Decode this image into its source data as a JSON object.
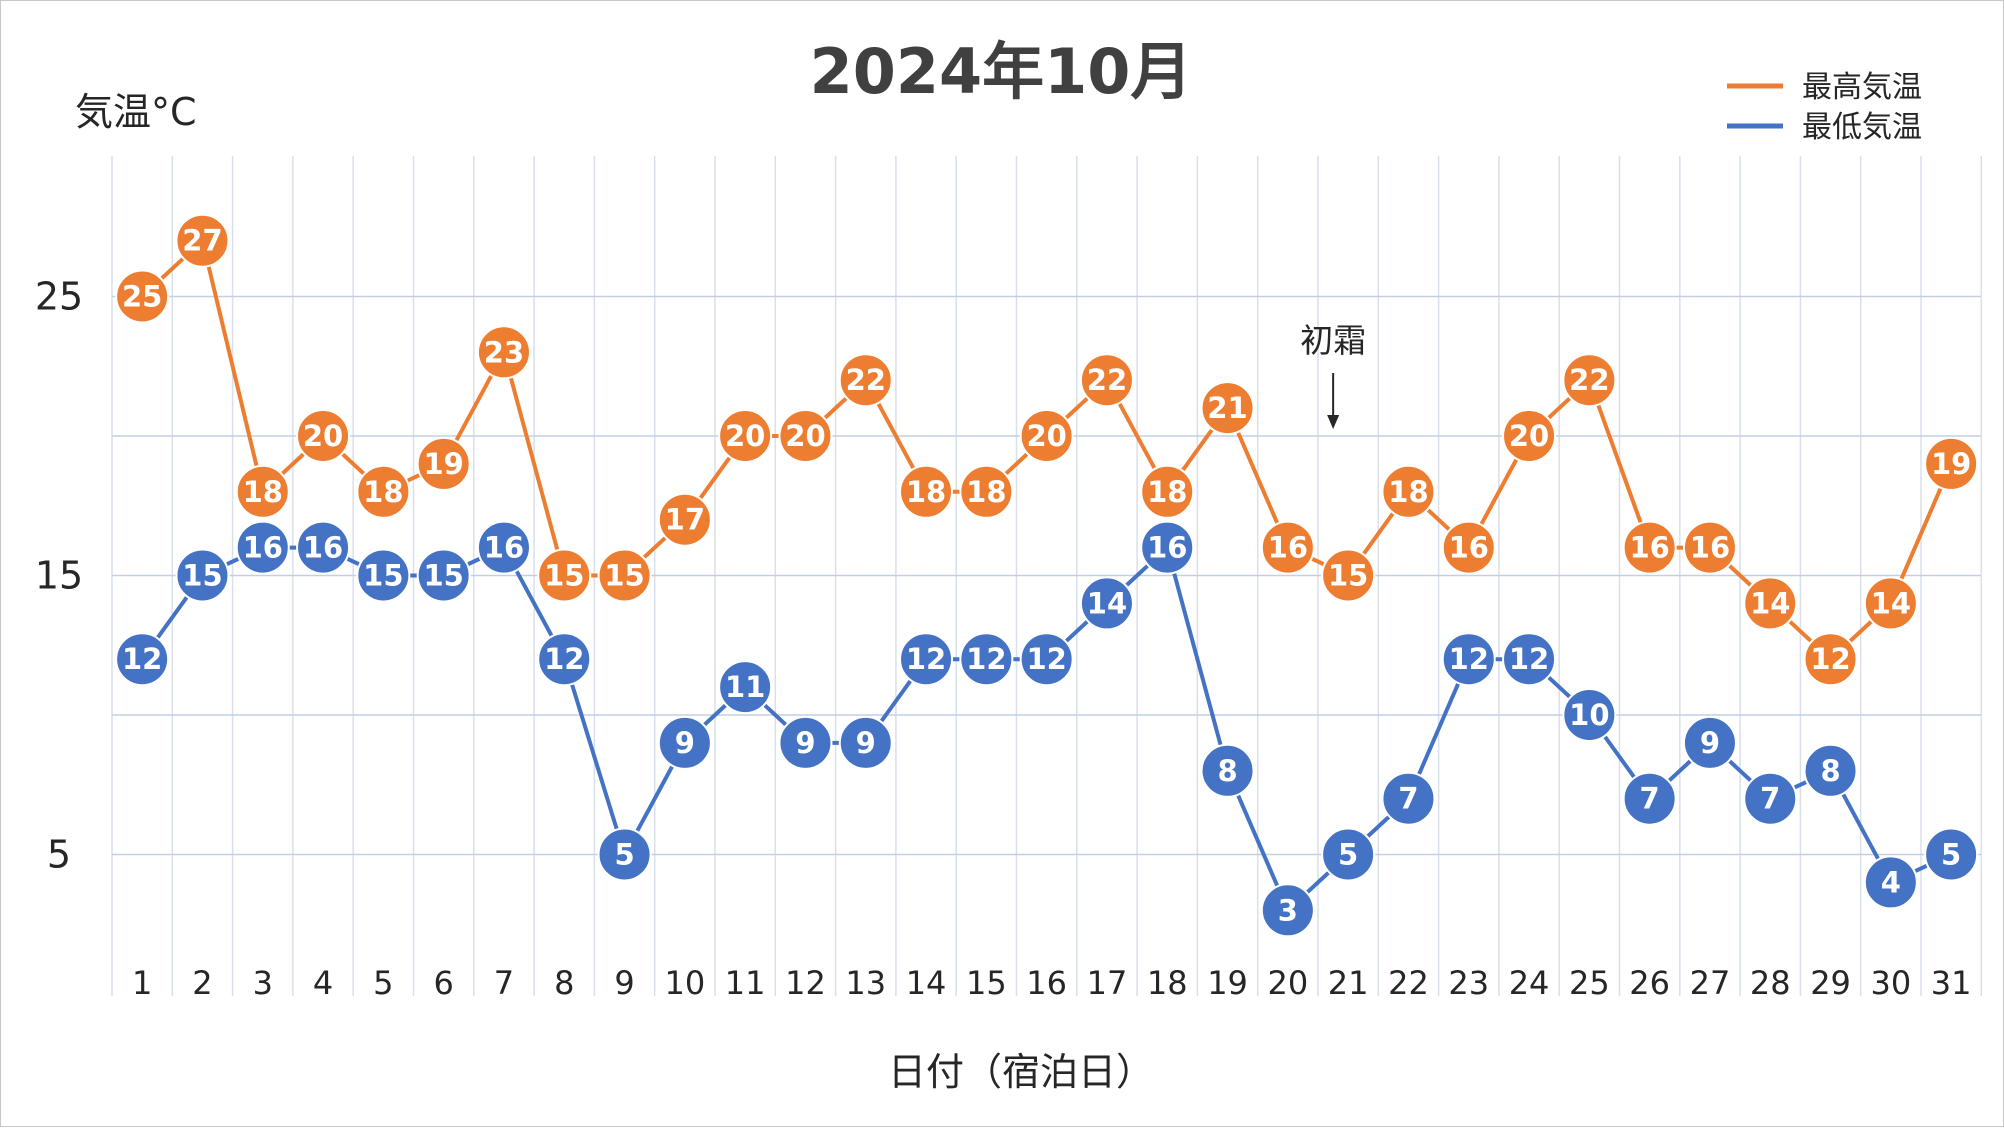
{
  "chart_data": {
    "type": "line",
    "title": "2024年10月",
    "xlabel": "日付（宿泊日）",
    "ylabel": "気温°C",
    "categories": [
      "1",
      "2",
      "3",
      "4",
      "5",
      "6",
      "7",
      "8",
      "9",
      "10",
      "11",
      "12",
      "13",
      "14",
      "15",
      "16",
      "17",
      "18",
      "19",
      "20",
      "21",
      "22",
      "23",
      "24",
      "25",
      "26",
      "27",
      "28",
      "29",
      "30",
      "31"
    ],
    "series": [
      {
        "name": "最高気温",
        "color": "#ED7D31",
        "values": [
          25,
          27,
          18,
          20,
          18,
          19,
          23,
          15,
          15,
          17,
          20,
          20,
          22,
          18,
          18,
          20,
          22,
          18,
          21,
          16,
          15,
          18,
          16,
          20,
          22,
          16,
          16,
          14,
          12,
          14,
          19
        ]
      },
      {
        "name": "最低気温",
        "color": "#4472C4",
        "values": [
          12,
          15,
          16,
          16,
          15,
          15,
          16,
          12,
          5,
          9,
          11,
          9,
          9,
          12,
          12,
          12,
          14,
          16,
          8,
          3,
          5,
          7,
          12,
          12,
          10,
          7,
          9,
          7,
          8,
          4,
          5
        ]
      }
    ],
    "yticks": [
      5,
      15,
      25
    ],
    "ylim": [
      0,
      30
    ],
    "grid": true,
    "legend": "top-right",
    "annotations": [
      {
        "text": "初霜",
        "x": "21"
      }
    ]
  }
}
